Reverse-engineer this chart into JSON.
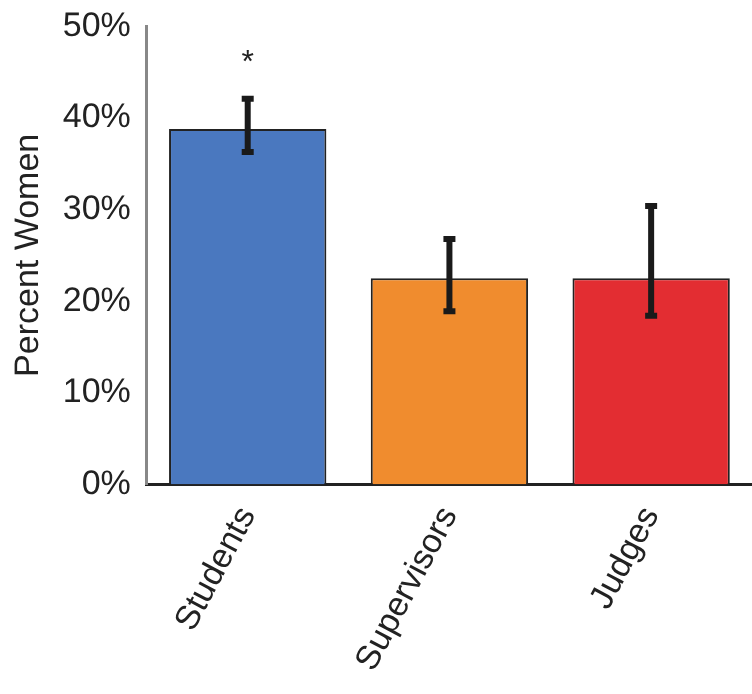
{
  "chart_data": {
    "type": "bar",
    "ylabel": "Percent Women",
    "categories": [
      "Students",
      "Supervisors",
      "Judges"
    ],
    "values": [
      38.8,
      22.5,
      22.5
    ],
    "colors": [
      "#4a78bf",
      "#f08c2e",
      "#e32d32"
    ],
    "errors": [
      [
        36.3,
        42.1
      ],
      [
        18.9,
        26.8
      ],
      [
        18.4,
        30.4
      ]
    ],
    "ylim": [
      0,
      50
    ],
    "yticks": [
      {
        "value": 0,
        "label": "0%"
      },
      {
        "value": 10,
        "label": "10%"
      },
      {
        "value": 20,
        "label": "20%"
      },
      {
        "value": 30,
        "label": "30%"
      },
      {
        "value": 40,
        "label": "40%"
      },
      {
        "value": 50,
        "label": "50%"
      }
    ],
    "annotations": [
      "*"
    ],
    "grid": false,
    "legend": false
  }
}
